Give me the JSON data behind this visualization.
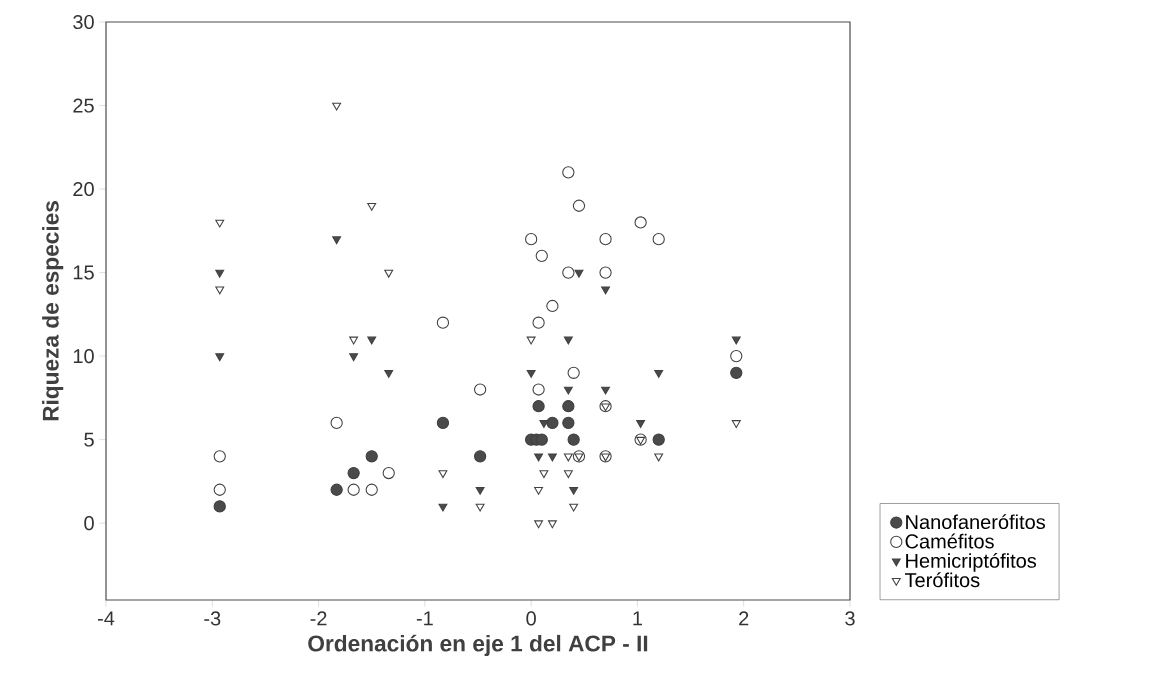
{
  "chart_data": {
    "type": "scatter",
    "xlabel": "Ordenación en eje 1 del ACP - II",
    "ylabel": "Riqueza de especies",
    "xlim": [
      -4,
      3
    ],
    "xticks": [
      -4,
      -3,
      -2,
      -1,
      0,
      1,
      2,
      3
    ],
    "ylim": [
      -4.6,
      30
    ],
    "yticks": [
      0,
      5,
      10,
      15,
      20,
      25,
      30
    ],
    "legend": "right",
    "series": [
      {
        "name": "Nanofanerófitos",
        "color": "#4a4a4a",
        "marker": "circle",
        "x": [
          -2.93,
          -1.83,
          -1.67,
          -1.5,
          -0.83,
          -0.48,
          0.0,
          0.05,
          0.1,
          0.07,
          0.2,
          0.35,
          0.35,
          0.4,
          1.2,
          1.93
        ],
        "values": [
          1,
          2,
          3,
          4,
          6,
          4,
          5,
          5,
          5,
          7,
          6,
          7,
          6,
          5,
          5,
          9
        ]
      },
      {
        "name": "Caméfitos",
        "color": "#ffffff",
        "marker": "circle",
        "x": [
          -2.93,
          -2.93,
          -1.83,
          -1.67,
          -1.5,
          -1.34,
          -0.83,
          -0.48,
          0.07,
          0.7,
          1.03,
          0.45,
          0.7,
          0.35,
          0.45,
          1.03,
          0.0,
          0.7,
          1.2,
          0.1,
          0.35,
          0.7,
          0.2,
          0.07,
          1.93,
          0.4
        ],
        "values": [
          4,
          2,
          6,
          2,
          2,
          3,
          12,
          8,
          8,
          7,
          5,
          4,
          4,
          21,
          19,
          18,
          17,
          17,
          17,
          16,
          15,
          15,
          13,
          12,
          10,
          9
        ]
      },
      {
        "name": "Hemicriptófitos",
        "color": "#4a4a4a",
        "marker": "triangle",
        "x": [
          -2.93,
          -2.93,
          -1.83,
          -1.5,
          -1.67,
          -1.34,
          -0.83,
          -0.48,
          0.35,
          0.7,
          0.12,
          1.03,
          0.07,
          0.2,
          0.4,
          0.45,
          0.7,
          0.35,
          1.93,
          0.0,
          1.2
        ],
        "values": [
          15,
          10,
          17,
          11,
          10,
          9,
          1,
          2,
          8,
          8,
          6,
          6,
          4,
          4,
          2,
          15,
          14,
          11,
          11,
          9,
          9
        ]
      },
      {
        "name": "Terófitos",
        "color": "#ffffff",
        "marker": "triangle",
        "x": [
          -1.83,
          -1.5,
          -2.93,
          -1.34,
          -2.93,
          -1.67,
          -0.83,
          -0.48,
          0.7,
          1.93,
          1.03,
          0.35,
          0.45,
          0.7,
          1.2,
          0.12,
          0.35,
          0.07,
          0.4,
          0.07,
          0.2,
          0.0
        ],
        "values": [
          25,
          19,
          18,
          15,
          14,
          11,
          3,
          1,
          7,
          6,
          5,
          4,
          4,
          4,
          4,
          3,
          3,
          2,
          1,
          0,
          0,
          11
        ]
      }
    ]
  }
}
